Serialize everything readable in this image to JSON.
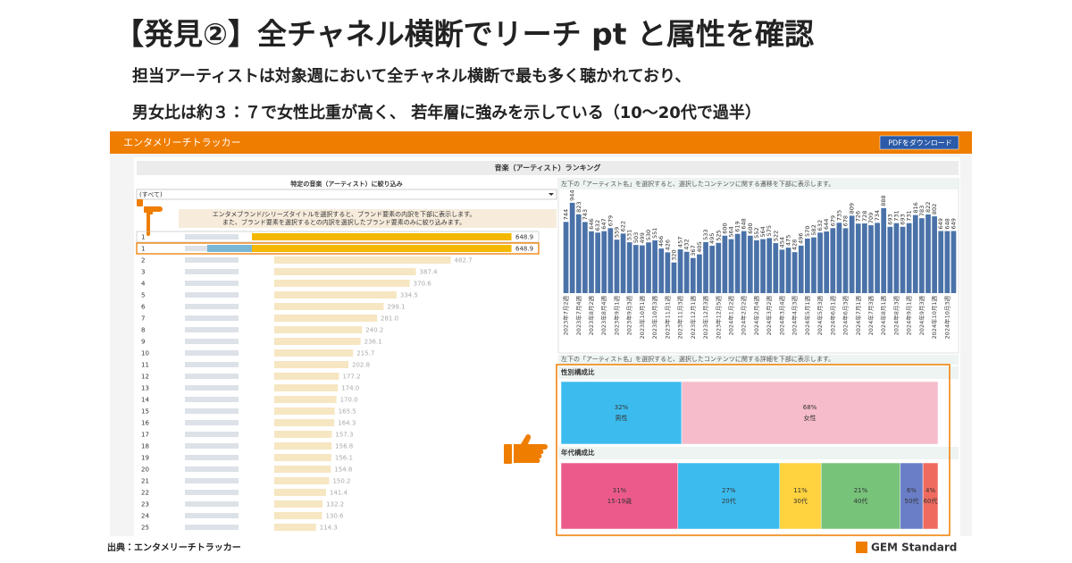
{
  "header": {
    "title": "【発見②】全チャネル横断でリーチ pt と属性を確認",
    "lines": [
      "担当アーティストは対象週において全チャネル横断で最も多く聴かれており、",
      "男女比は約３：７で女性比重が高く、 若年層に強みを示している（10～20代で過半）"
    ]
  },
  "dashboard": {
    "app_title": "エンタメリーチトラッカー",
    "button": "PDFをダウンロード",
    "section_title": "音楽（アーティスト）ランキング",
    "filter_label": "特定の音楽（アーティスト）に絞り込み",
    "filter_value": "(すべて)",
    "left_note": [
      "エンタメブランド/シリーズタイトルを選択すると、ブランド要素の内訳を下部に表示します。",
      "また、ブランド要素を選択するとの内訳を選択したブランド要素のみに絞り込みます。"
    ],
    "trend_note": "左下の「アーティスト名」を選択すると、選択したコンテンツに関する遷移を下部に表示します。",
    "detail_note": "左下の「アーティスト名」を選択すると、選択したコンテンツに関する詳細を下部に表示します。"
  },
  "chart_data": [
    {
      "type": "hbar",
      "categories": [
        "1",
        "1",
        "2",
        "3",
        "4",
        "5",
        "6",
        "7",
        "8",
        "9",
        "10",
        "11",
        "12",
        "13",
        "14",
        "15",
        "16",
        "17",
        "18",
        "19",
        "20",
        "21",
        "22",
        "23",
        "24",
        "25"
      ],
      "values": [
        648.9,
        648.9,
        482.7,
        387.4,
        370.6,
        334.5,
        299.1,
        281.0,
        240.2,
        236.1,
        215.7,
        202.8,
        177.2,
        174.0,
        170.0,
        165.5,
        164.3,
        157.3,
        156.8,
        156.1,
        154.8,
        150.2,
        141.4,
        132.2,
        130.6,
        114.3
      ],
      "value_labels": [
        "648.9",
        "648.9",
        "482.7",
        "387.4",
        "370.6",
        "334.5",
        "299.1",
        "281.0",
        "240.2",
        "236.1",
        "215.7",
        "202.8",
        "177.2",
        "174.0",
        "170.0",
        "165.5",
        "164.3",
        "157.3",
        "156.8",
        "156.1",
        "154.8",
        "150.2",
        "141.4",
        "132.2",
        "130.6",
        "114.3"
      ],
      "color": "#f5b800",
      "xlim": [
        0,
        650
      ]
    },
    {
      "type": "bar",
      "categories": [
        "2023年7月2週",
        null,
        "2023年7月4週",
        null,
        "2023年8月2週",
        null,
        "2023年8月4週",
        null,
        "2023年9月1週",
        null,
        "2023年9月3週",
        null,
        "2023年10月1週",
        null,
        "2023年10月3週",
        null,
        "2023年11月1週",
        null,
        "2023年11月3週",
        null,
        "2023年12月1週",
        null,
        "2023年12月3週",
        null,
        "2023年12月5週",
        null,
        "2024年1月2週",
        null,
        "2024年2月2週",
        null,
        "2024年2月4週",
        null,
        "2024年3月2週",
        null,
        "2024年3月4週",
        null,
        "2024年4月3週",
        null,
        "2024年5月1週",
        null,
        "2024年5月3週",
        null,
        "2024年6月1週",
        null,
        "2024年6月3週",
        null,
        "2024年7月1週",
        null,
        "2024年7月3週",
        null,
        "2024年8月1週",
        null,
        "2024年8月3週",
        null,
        "2024年9月1週",
        null,
        "2024年9月3週",
        null,
        "2024年10月1週",
        null,
        "2024年10月3週",
        null
      ],
      "values": [
        744,
        944,
        823,
        743,
        646,
        632,
        647,
        679,
        559,
        622,
        531,
        503,
        499,
        530,
        551,
        466,
        426,
        320,
        457,
        432,
        367,
        405,
        533,
        495,
        525,
        600,
        564,
        619,
        648,
        600,
        552,
        564,
        575,
        522,
        454,
        475,
        428,
        496,
        570,
        582,
        632,
        644,
        679,
        735,
        678,
        809,
        726,
        728,
        709,
        734,
        888,
        693,
        731,
        693,
        731,
        816,
        783,
        822,
        802,
        649,
        648,
        649
      ],
      "color": "#4a72a8",
      "ylim": [
        0,
        1000
      ]
    },
    {
      "type": "stacked100",
      "title": "性別構成比",
      "categories": [
        "男性",
        "女性"
      ],
      "values": [
        32,
        68
      ],
      "value_labels": [
        "32%",
        "68%"
      ],
      "colors": [
        "#3cbcee",
        "#f6bccb"
      ],
      "xlim": [
        0,
        100
      ]
    },
    {
      "type": "stacked100",
      "title": "年代構成比",
      "categories": [
        "15-19歳",
        "20代",
        "30代",
        "40代",
        "50代",
        "60代"
      ],
      "values": [
        31,
        27,
        11,
        21,
        6,
        4
      ],
      "value_labels": [
        "31%",
        "27%",
        "11%",
        "21%",
        "6%",
        "4%"
      ],
      "colors": [
        "#ec5a8b",
        "#3cbcee",
        "#ffd23f",
        "#77c37a",
        "#6a7ec8",
        "#f06b5f"
      ],
      "xlim": [
        0,
        100
      ]
    }
  ],
  "footer": {
    "source": "出典：エンタメリーチトラッカー",
    "logo": "GEM Standard"
  }
}
